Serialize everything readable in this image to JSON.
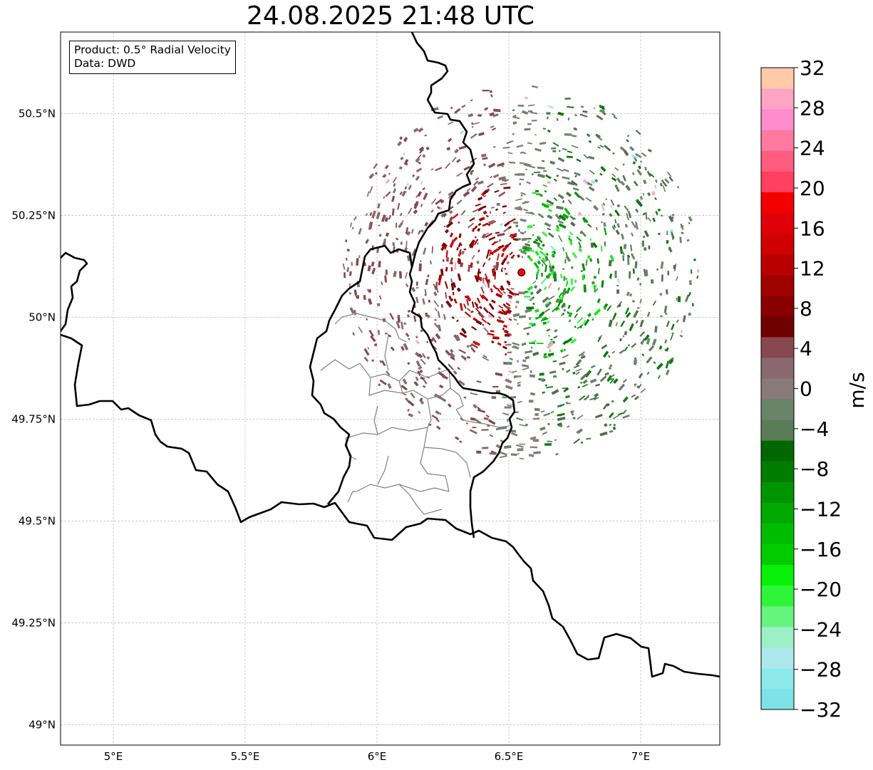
{
  "title": "24.08.2025 21:48 UTC",
  "info": {
    "product": "Product: 0.5° Radial Velocity",
    "source": "Data: DWD"
  },
  "axes": {
    "lat_ticks": [
      "50.5°N",
      "50.25°N",
      "50°N",
      "49.75°N",
      "49.5°N",
      "49.25°N",
      "49°N"
    ],
    "lon_ticks": [
      "5°E",
      "5.5°E",
      "6°E",
      "6.5°E",
      "7°E"
    ],
    "lat_values": [
      50.5,
      50.25,
      50.0,
      49.75,
      49.5,
      49.25,
      49.0
    ],
    "lon_values": [
      5.0,
      5.5,
      6.0,
      6.5,
      7.0
    ],
    "extent": {
      "lon": [
        4.8,
        7.3
      ],
      "lat": [
        48.95,
        50.7
      ]
    }
  },
  "colorbar": {
    "unit": "m/s",
    "tick_labels": [
      "32",
      "28",
      "24",
      "20",
      "16",
      "12",
      "8",
      "4",
      "0",
      "−4",
      "−8",
      "−12",
      "−16",
      "−20",
      "−24",
      "−28",
      "−32"
    ],
    "range": [
      -32,
      32
    ],
    "colors_bottom_to_top": [
      "#7de3e6",
      "#8ee9ec",
      "#ade8ec",
      "#9cf0c6",
      "#66f57c",
      "#2ef53a",
      "#08f008",
      "#00cc00",
      "#00bc00",
      "#00a800",
      "#009400",
      "#007c00",
      "#006800",
      "#5a7c56",
      "#6a846a",
      "#887a78",
      "#8a6870",
      "#884850",
      "#700000",
      "#880000",
      "#a00000",
      "#b80000",
      "#d00000",
      "#e00008",
      "#f20000",
      "#ff4060",
      "#ff5c80",
      "#ff7aa0",
      "#ff8ccc",
      "#ffa4c4",
      "#ffcaa8"
    ]
  },
  "radar_site": {
    "lon": 6.548,
    "lat": 50.11,
    "color": "#ff0000"
  },
  "colors": {
    "border": "#000000",
    "district": "#808080",
    "grid": "#b0b0b0"
  }
}
